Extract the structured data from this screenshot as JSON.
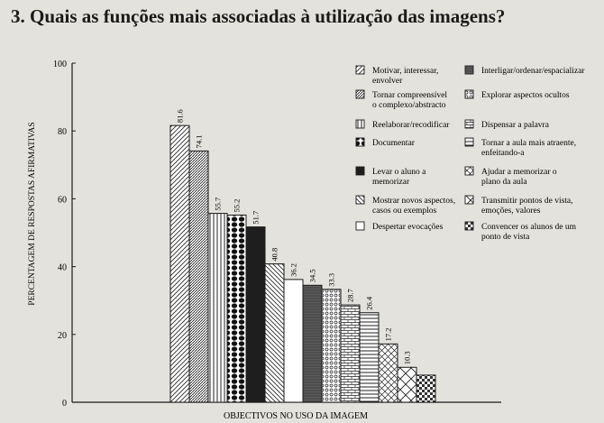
{
  "heading": "3. Quais as funções mais associadas à utilização das imagens?",
  "chart_data": {
    "type": "bar",
    "title": "",
    "xlabel": "OBJECTIVOS NO USO DA IMAGEM",
    "ylabel": "PERCENTAGEM DE RESPOSTAS AFIRMATIVAS",
    "ylim": [
      0,
      100
    ],
    "yticks": [
      "0",
      "20",
      "40",
      "60",
      "80",
      "100"
    ],
    "grid": false,
    "legend_position": "top-right",
    "categories": [
      "Motivar, interessar, envolver",
      "Tornar compreensível o complexo/abstracto",
      "Reelaborar/recodificar",
      "Documentar",
      "Levar o aluno a memorizar",
      "Mostrar novos aspectos, casos ou exemplos",
      "Despertar evocações",
      "Interligar/ordenar/espacializar",
      "Explorar aspectos ocultos",
      "Dispensar a palavra",
      "Tornar a aula mais atraente, enfeitando-a",
      "Ajudar a memorizar o plano da aula",
      "Transmitir pontos de vista, emoções, valores",
      "Convencer os alunos de um ponto de vista"
    ],
    "values": [
      81.6,
      74.1,
      55.7,
      55.2,
      51.7,
      40.8,
      36.2,
      34.5,
      33.3,
      28.7,
      26.4,
      17.2,
      10.3,
      8.0
    ],
    "value_labels": [
      "81.6",
      "74.1",
      "55.7",
      "55.2",
      "51.7",
      "40.8",
      "36.2",
      "34.5",
      "33.3",
      "28.7",
      "26.4",
      "17.2",
      "10.3",
      ""
    ],
    "legend": [
      {
        "lines": [
          "Motivar, interessar,",
          "envolver"
        ],
        "pattern": "diag-right"
      },
      {
        "lines": [
          "Tornar compreensível",
          "o complexo/abstracto"
        ],
        "pattern": "diag-dense"
      },
      {
        "lines": [
          "Reelaborar/recodificar"
        ],
        "pattern": "vertical"
      },
      {
        "lines": [
          "Documentar"
        ],
        "pattern": "dots"
      },
      {
        "lines": [
          "Levar o aluno a",
          "memorizar"
        ],
        "pattern": "solid"
      },
      {
        "lines": [
          "Mostrar novos aspectos,",
          "casos ou exemplos"
        ],
        "pattern": "diag-left"
      },
      {
        "lines": [
          "Despertar evocações"
        ],
        "pattern": "blank"
      },
      {
        "lines": [
          "Interligar/ordenar/espacializar"
        ],
        "pattern": "dark-gray"
      },
      {
        "lines": [
          "Explorar aspectos ocultos"
        ],
        "pattern": "small-circles"
      },
      {
        "lines": [
          "Dispensar a palavra"
        ],
        "pattern": "brick"
      },
      {
        "lines": [
          "Tornar a aula mais atraente,",
          "enfeitando-a"
        ],
        "pattern": "horizontal"
      },
      {
        "lines": [
          "Ajudar a memorizar o",
          "plano da aula"
        ],
        "pattern": "diamond"
      },
      {
        "lines": [
          "Transmitir pontos de vista,",
          "emoções, valores"
        ],
        "pattern": "x-hatch"
      },
      {
        "lines": [
          "Convencer os alunos de um",
          "ponto de vista"
        ],
        "pattern": "checker"
      }
    ],
    "colors": {
      "ink": "#1a1a1a",
      "paper": "#e4e2dc",
      "bar_fill": "#ffffff"
    }
  }
}
